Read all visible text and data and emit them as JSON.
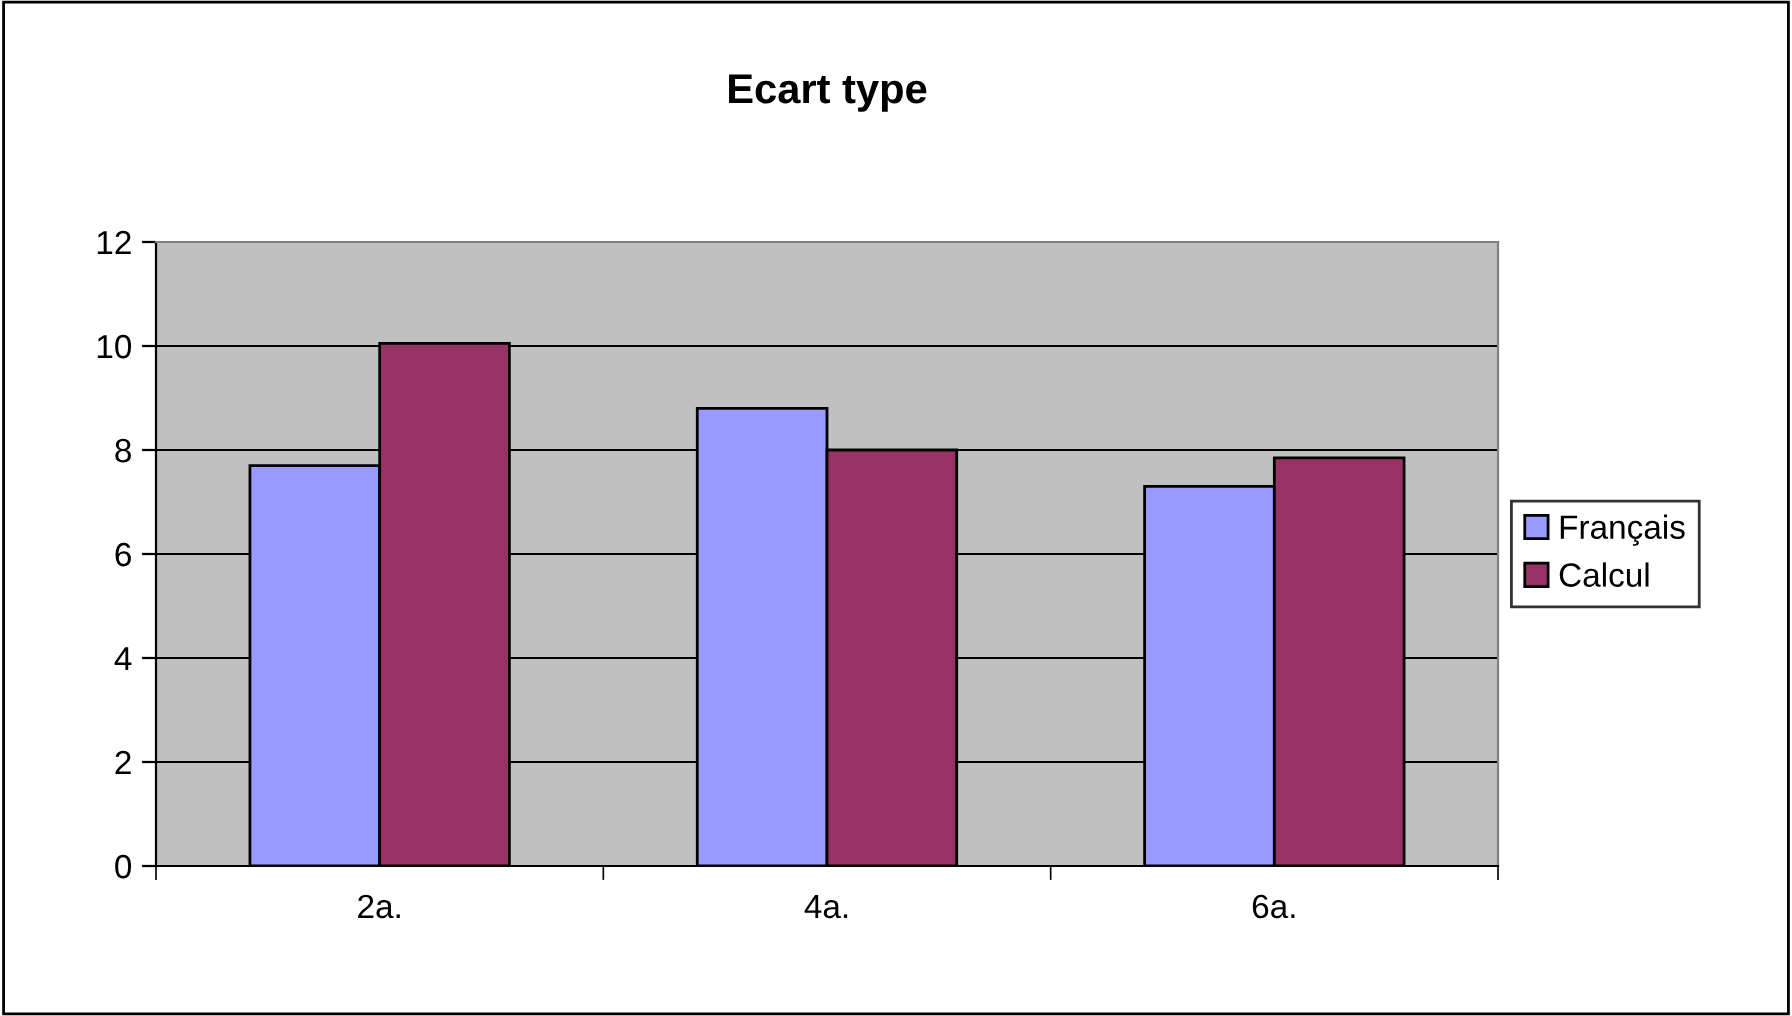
{
  "chart_data": {
    "type": "bar",
    "title": "Ecart type",
    "categories": [
      "2a.",
      "4a.",
      "6a."
    ],
    "series": [
      {
        "name": "Français",
        "color": "#9999ff",
        "values": [
          7.7,
          8.8,
          7.3
        ]
      },
      {
        "name": "Calcul",
        "color": "#993366",
        "values": [
          10.05,
          8.0,
          7.85
        ]
      }
    ],
    "ylim": [
      0,
      12
    ],
    "yticks": [
      0,
      2,
      4,
      6,
      8,
      10,
      12
    ],
    "grid": "y",
    "legend": "right"
  }
}
